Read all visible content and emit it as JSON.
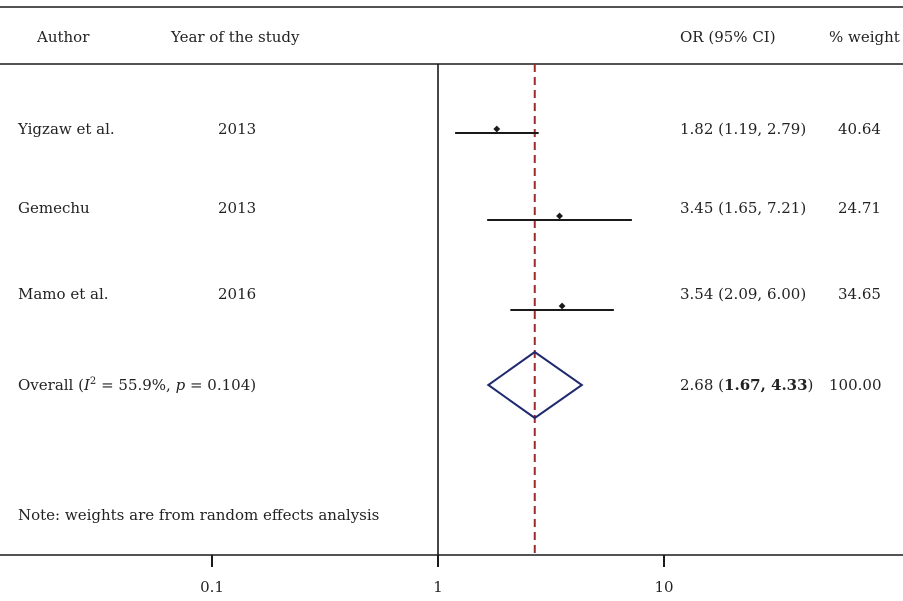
{
  "header": {
    "author": "Author",
    "year": "Year of the study",
    "or_ci": "OR (95% CI)",
    "weight": "% weight"
  },
  "studies": [
    {
      "author": "Yigzaw et al.",
      "year": "2013",
      "or_text": "1.82 (1.19, 2.79)",
      "weight_text": "40.64"
    },
    {
      "author": "Gemechu",
      "year": "2013",
      "or_text": "3.45 (1.65, 7.21)",
      "weight_text": "24.71"
    },
    {
      "author": "Mamo et al.",
      "year": "2016",
      "or_text": "3.54 (2.09, 6.00)",
      "weight_text": "34.65"
    }
  ],
  "overall": {
    "prefix": "Overall (",
    "i_symbol": "I",
    "i_exp": "2",
    "i_value": " = 55.9%, ",
    "p_symbol": "p",
    "p_value": " = 0.104)",
    "or_point": "2.68",
    "or_ci_open": " (",
    "or_ci_bold": "1.67, 4.33",
    "or_ci_close": ")",
    "weight_text": "100.00"
  },
  "note": "Note: weights are from random effects analysis",
  "colors": {
    "reference_line": "#9e2b2b",
    "diamond": "#1f2a6e",
    "ink": "#1a1a1a"
  },
  "chart_data": {
    "type": "forest",
    "scale": "log",
    "xlim": [
      0.1,
      10
    ],
    "null_value": 1,
    "x_ticks": [
      {
        "value": 0.1,
        "label": "0.1"
      },
      {
        "value": 1,
        "label": "1"
      },
      {
        "value": 10,
        "label": "10"
      }
    ],
    "studies": [
      {
        "name": "Yigzaw et al.",
        "or": 1.82,
        "lower": 1.19,
        "upper": 2.79,
        "weight": 40.64
      },
      {
        "name": "Gemechu",
        "or": 3.45,
        "lower": 1.65,
        "upper": 7.21,
        "weight": 24.71
      },
      {
        "name": "Mamo et al.",
        "or": 3.54,
        "lower": 2.09,
        "upper": 6.0,
        "weight": 34.65
      }
    ],
    "overall": {
      "or": 2.68,
      "lower": 1.67,
      "upper": 4.33,
      "weight": 100.0,
      "i2": 55.9,
      "p": 0.104
    }
  }
}
